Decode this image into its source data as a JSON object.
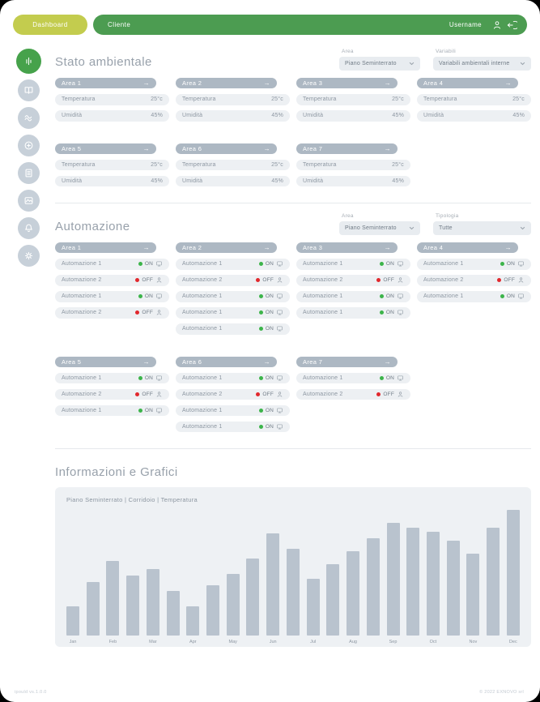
{
  "topbar": {
    "dashboard_label": "Dashboard",
    "client_label": "Cliente",
    "username": "Username"
  },
  "icons": {
    "arrow_right": "→",
    "topbar": [
      "user-icon",
      "logout-icon"
    ],
    "sidebar": [
      {
        "name": "stats-bars-icon",
        "active": true
      },
      {
        "name": "book-icon",
        "active": false
      },
      {
        "name": "waves-icon",
        "active": false
      },
      {
        "name": "plus-circle-icon",
        "active": false
      },
      {
        "name": "document-icon",
        "active": false
      },
      {
        "name": "image-icon",
        "active": false
      },
      {
        "name": "bell-icon",
        "active": false
      },
      {
        "name": "gear-icon",
        "active": false
      }
    ]
  },
  "stato": {
    "title": "Stato ambientale",
    "area_filter": {
      "label": "Area",
      "value": "Piano Seminterrato"
    },
    "variabili_filter": {
      "label": "Variabili",
      "value": "Variabili ambientali interne"
    },
    "areas": [
      {
        "name": "Area 1",
        "rows": [
          {
            "label": "Temperatura",
            "value": "25°c"
          },
          {
            "label": "Umidità",
            "value": "45%"
          }
        ]
      },
      {
        "name": "Area 2",
        "rows": [
          {
            "label": "Temperatura",
            "value": "25°c"
          },
          {
            "label": "Umidità",
            "value": "45%"
          }
        ]
      },
      {
        "name": "Area 3",
        "rows": [
          {
            "label": "Temperatura",
            "value": "25°c"
          },
          {
            "label": "Umidità",
            "value": "45%"
          }
        ]
      },
      {
        "name": "Area 4",
        "rows": [
          {
            "label": "Temperatura",
            "value": "25°c"
          },
          {
            "label": "Umidità",
            "value": "45%"
          }
        ]
      },
      {
        "name": "Area 5",
        "rows": [
          {
            "label": "Temperatura",
            "value": "25°c"
          },
          {
            "label": "Umidità",
            "value": "45%"
          }
        ]
      },
      {
        "name": "Area 6",
        "rows": [
          {
            "label": "Temperatura",
            "value": "25°c"
          },
          {
            "label": "Umidità",
            "value": "45%"
          }
        ]
      },
      {
        "name": "Area 7",
        "rows": [
          {
            "label": "Temperatura",
            "value": "25°c"
          },
          {
            "label": "Umidità",
            "value": "45%"
          }
        ]
      }
    ]
  },
  "automazione": {
    "title": "Automazione",
    "area_filter": {
      "label": "Area",
      "value": "Piano Seminterrato"
    },
    "tipologia_filter": {
      "label": "Tipologia",
      "value": "Tutte"
    },
    "areas": [
      {
        "name": "Area 1",
        "rows": [
          {
            "label": "Automazione 1",
            "state": "ON",
            "icon": "monitor"
          },
          {
            "label": "Automazione 2",
            "state": "OFF",
            "icon": "user"
          },
          {
            "label": "Automazione 1",
            "state": "ON",
            "icon": "monitor"
          },
          {
            "label": "Automazione 2",
            "state": "OFF",
            "icon": "user"
          }
        ]
      },
      {
        "name": "Area 2",
        "rows": [
          {
            "label": "Automazione 1",
            "state": "ON",
            "icon": "monitor"
          },
          {
            "label": "Automazione 2",
            "state": "OFF",
            "icon": "user"
          },
          {
            "label": "Automazione 1",
            "state": "ON",
            "icon": "monitor"
          },
          {
            "label": "Automazione 1",
            "state": "ON",
            "icon": "monitor"
          },
          {
            "label": "Automazione 1",
            "state": "ON",
            "icon": "monitor"
          }
        ]
      },
      {
        "name": "Area 3",
        "rows": [
          {
            "label": "Automazione 1",
            "state": "ON",
            "icon": "monitor"
          },
          {
            "label": "Automazione 2",
            "state": "OFF",
            "icon": "user"
          },
          {
            "label": "Automazione 1",
            "state": "ON",
            "icon": "monitor"
          },
          {
            "label": "Automazione 1",
            "state": "ON",
            "icon": "monitor"
          }
        ]
      },
      {
        "name": "Area 4",
        "rows": [
          {
            "label": "Automazione 1",
            "state": "ON",
            "icon": "monitor"
          },
          {
            "label": "Automazione 2",
            "state": "OFF",
            "icon": "user"
          },
          {
            "label": "Automazione 1",
            "state": "ON",
            "icon": "monitor"
          }
        ]
      },
      {
        "name": "Area 5",
        "rows": [
          {
            "label": "Automazione 1",
            "state": "ON",
            "icon": "monitor"
          },
          {
            "label": "Automazione 2",
            "state": "OFF",
            "icon": "user"
          },
          {
            "label": "Automazione 1",
            "state": "ON",
            "icon": "monitor"
          }
        ]
      },
      {
        "name": "Area 6",
        "rows": [
          {
            "label": "Automazione 1",
            "state": "ON",
            "icon": "monitor"
          },
          {
            "label": "Automazione 2",
            "state": "OFF",
            "icon": "user"
          },
          {
            "label": "Automazione 1",
            "state": "ON",
            "icon": "monitor"
          },
          {
            "label": "Automazione 1",
            "state": "ON",
            "icon": "monitor"
          }
        ]
      },
      {
        "name": "Area 7",
        "rows": [
          {
            "label": "Automazione 1",
            "state": "ON",
            "icon": "monitor"
          },
          {
            "label": "Automazione 2",
            "state": "OFF",
            "icon": "user"
          }
        ]
      }
    ]
  },
  "grafici": {
    "title": "Informazioni e Grafici"
  },
  "chart_data": {
    "type": "bar",
    "title": "Piano Seminterrato | Corridoio | Temperatura",
    "x_tick_labels": [
      "Jan",
      "Feb",
      "Mar",
      "Apr",
      "May",
      "Jun",
      "Jul",
      "Aug",
      "Sep",
      "Oct",
      "Nov",
      "Dec"
    ],
    "bar_labels": [
      "Jan",
      "",
      "Feb",
      "",
      "Mar",
      "",
      "Apr",
      "",
      "May",
      "",
      "Jun",
      "",
      "Jul",
      "",
      "Aug",
      "",
      "Sep",
      "",
      "Oct",
      "",
      "Nov",
      "",
      "Dec"
    ],
    "values": [
      23,
      42,
      58,
      47,
      52,
      35,
      23,
      39,
      48,
      60,
      80,
      68,
      44,
      56,
      66,
      76,
      88,
      84,
      81,
      74,
      64,
      84,
      98
    ],
    "ylim": [
      0,
      100
    ],
    "yaxis": "hidden",
    "grid": "off",
    "legend": "none",
    "bar_color": "#b9c3ce",
    "note": "23 bars, month labels under every other bar, values in relative units (no y axis shown)"
  },
  "footer": {
    "left": "ipould vs.1.0.0",
    "right": "© 2022 EXNOVO srl"
  },
  "colors": {
    "topbar_green": "#4c9c51",
    "dashboard_pill": "#c3cc4e",
    "sidebar_active": "#46a24b",
    "sidebar_inactive": "#c7d0d9",
    "card_header": "#adb8c3",
    "row_bg": "#edf0f3",
    "text_gray": "#8c96a1",
    "on_green": "#3cb44a",
    "off_red": "#e1282d",
    "bar_gray": "#b9c3ce"
  }
}
